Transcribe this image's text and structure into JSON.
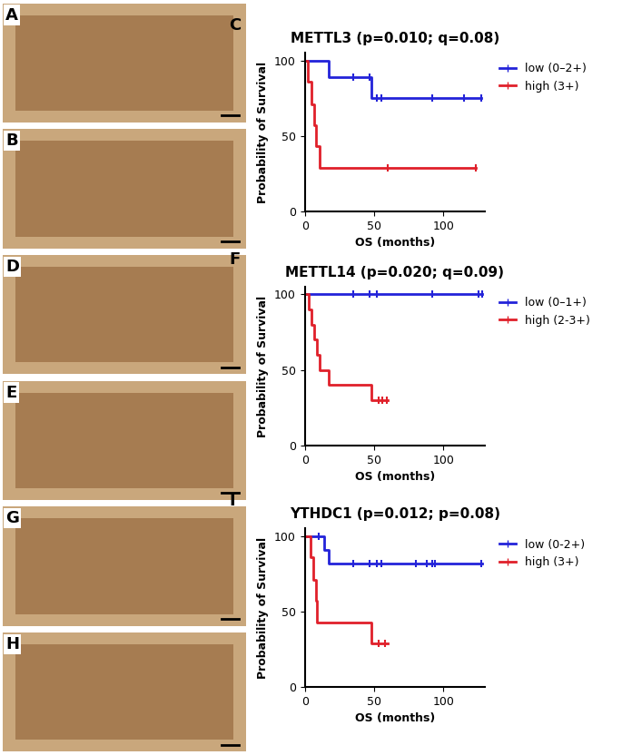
{
  "image_panels": [
    {
      "panel_label": "A"
    },
    {
      "panel_label": "B"
    },
    {
      "panel_label": "D"
    },
    {
      "panel_label": "E"
    },
    {
      "panel_label": "G"
    },
    {
      "panel_label": "H"
    }
  ],
  "chart_data": [
    {
      "type": "step",
      "panel_label": "C",
      "title": "METTL3 (p=0.010; q=0.08)",
      "x_label": "OS (months)",
      "y_label": "Probability of Survival",
      "xlim": [
        0,
        130
      ],
      "xticks": [
        0,
        50,
        100
      ],
      "ylim": [
        0,
        105
      ],
      "yticks": [
        0,
        50,
        100
      ],
      "legend": "right",
      "marker": "|",
      "series": [
        {
          "name": "low (0–2+)",
          "color": "#2323d9",
          "x": [
            0,
            17,
            48,
            127
          ],
          "values": [
            100,
            89,
            75,
            75
          ],
          "censored": {
            "x": [
              35,
              47,
              52,
              55,
              92,
              115,
              127
            ],
            "y": [
              89,
              89,
              75,
              75,
              75,
              75,
              75
            ]
          }
        },
        {
          "name": "high (3+)",
          "color": "#e0202a",
          "x": [
            0,
            2,
            5,
            7,
            8,
            11,
            123
          ],
          "values": [
            100,
            86,
            71,
            57,
            43,
            29,
            29
          ],
          "censored": {
            "x": [
              60,
              123
            ],
            "y": [
              29,
              29
            ]
          }
        }
      ]
    },
    {
      "type": "step",
      "panel_label": "F",
      "title": "METTL14 (p=0.020; q=0.09)",
      "x_label": "OS (months)",
      "y_label": "Probability of Survival",
      "xlim": [
        0,
        130
      ],
      "xticks": [
        0,
        50,
        100
      ],
      "ylim": [
        0,
        105
      ],
      "yticks": [
        0,
        50,
        100
      ],
      "legend": "right",
      "marker": "|",
      "series": [
        {
          "name": "low (0–1+)",
          "color": "#2323d9",
          "x": [
            0,
            128
          ],
          "values": [
            100,
            100
          ],
          "censored": {
            "x": [
              35,
              47,
              52,
              92,
              125,
              128
            ],
            "y": [
              100,
              100,
              100,
              100,
              100,
              100
            ]
          }
        },
        {
          "name": "high (2-3+)",
          "color": "#e0202a",
          "x": [
            0,
            3,
            5,
            7,
            9,
            11,
            17,
            48,
            60
          ],
          "values": [
            100,
            90,
            80,
            70,
            60,
            50,
            40,
            30,
            30
          ],
          "censored": {
            "x": [
              53,
              56,
              59
            ],
            "y": [
              30,
              30,
              30
            ]
          }
        }
      ]
    },
    {
      "type": "step",
      "panel_label": "I",
      "title": "YTHDC1 (p=0.012; p=0.08)",
      "x_label": "OS (months)",
      "y_label": "Probability of Survival",
      "xlim": [
        0,
        130
      ],
      "xticks": [
        0,
        50,
        100
      ],
      "ylim": [
        0,
        105
      ],
      "yticks": [
        0,
        50,
        100
      ],
      "legend": "right",
      "marker": "|",
      "series": [
        {
          "name": "low (0-2+)",
          "color": "#2323d9",
          "x": [
            0,
            14,
            17,
            128
          ],
          "values": [
            100,
            91,
            82,
            82
          ],
          "censored": {
            "x": [
              10,
              35,
              47,
              52,
              55,
              80,
              88,
              92,
              94,
              127
            ],
            "y": [
              100,
              82,
              82,
              82,
              82,
              82,
              82,
              82,
              82,
              82
            ]
          }
        },
        {
          "name": "high (3+)",
          "color": "#e0202a",
          "x": [
            0,
            4,
            6,
            8,
            9,
            48,
            60
          ],
          "values": [
            100,
            86,
            71,
            57,
            43,
            29,
            29
          ],
          "censored": {
            "x": [
              53,
              58
            ],
            "y": [
              29,
              29
            ]
          }
        }
      ]
    }
  ]
}
